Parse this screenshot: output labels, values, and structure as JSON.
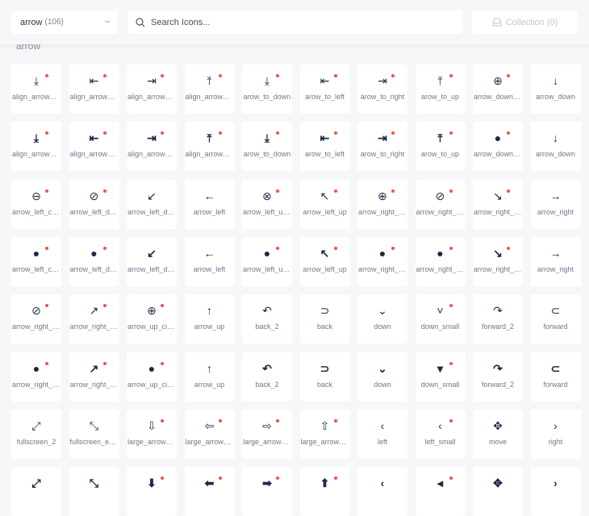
{
  "header": {
    "category_select": {
      "value": "arrow",
      "count": "(106)"
    },
    "search": {
      "placeholder": "Search Icons..."
    },
    "collection_label": "Collection (0)"
  },
  "section_title": "arrow",
  "colors": {
    "accent_dot": "#f5504a",
    "icon": "#1b2a44",
    "background": "#f6f7f9"
  },
  "rows": [
    {
      "filled": false,
      "items": [
        {
          "name": "align_arrow_d...",
          "icon": "⤓",
          "dot": true
        },
        {
          "name": "align_arrow_left",
          "icon": "⇤",
          "dot": true
        },
        {
          "name": "align_arrow_ri...",
          "icon": "⇥",
          "dot": true
        },
        {
          "name": "align_arrow_up",
          "icon": "⤒",
          "dot": true
        },
        {
          "name": "arow_to_down",
          "icon": "⤓",
          "dot": true
        },
        {
          "name": "arow_to_left",
          "icon": "⇤",
          "dot": true
        },
        {
          "name": "arow_to_right",
          "icon": "⇥",
          "dot": true
        },
        {
          "name": "arow_to_up",
          "icon": "⤒",
          "dot": true
        },
        {
          "name": "arrow_down_c...",
          "icon": "⊕",
          "dot": true
        },
        {
          "name": "arrow_down",
          "icon": "↓",
          "dot": false
        }
      ]
    },
    {
      "filled": true,
      "items": [
        {
          "name": "align_arrow_d...",
          "icon": "⤓",
          "dot": true
        },
        {
          "name": "align_arrow_left",
          "icon": "⇤",
          "dot": true
        },
        {
          "name": "align_arrow_ri...",
          "icon": "⇥",
          "dot": true
        },
        {
          "name": "align_arrow_up",
          "icon": "⤒",
          "dot": true
        },
        {
          "name": "arow_to_down",
          "icon": "⤓",
          "dot": true
        },
        {
          "name": "arow_to_left",
          "icon": "⇤",
          "dot": true
        },
        {
          "name": "arow_to_right",
          "icon": "⇥",
          "dot": true
        },
        {
          "name": "arow_to_up",
          "icon": "⤒",
          "dot": true
        },
        {
          "name": "arrow_down_c...",
          "icon": "●",
          "dot": true
        },
        {
          "name": "arrow_down",
          "icon": "↓",
          "dot": false
        }
      ]
    },
    {
      "filled": false,
      "items": [
        {
          "name": "arrow_left_circle",
          "icon": "⊖",
          "dot": true
        },
        {
          "name": "arrow_left_do...",
          "icon": "⊘",
          "dot": true
        },
        {
          "name": "arrow_left_do...",
          "icon": "↙",
          "dot": false
        },
        {
          "name": "arrow_left",
          "icon": "←",
          "dot": false
        },
        {
          "name": "arrow_left_up...",
          "icon": "⊗",
          "dot": true
        },
        {
          "name": "arrow_left_up",
          "icon": "↖",
          "dot": true
        },
        {
          "name": "arrow_right_ci...",
          "icon": "⊕",
          "dot": true
        },
        {
          "name": "arrow_right_d...",
          "icon": "⊘",
          "dot": true
        },
        {
          "name": "arrow_right_d...",
          "icon": "↘",
          "dot": true
        },
        {
          "name": "arrow_right",
          "icon": "→",
          "dot": false
        }
      ]
    },
    {
      "filled": true,
      "items": [
        {
          "name": "arrow_left_circle",
          "icon": "●",
          "dot": true
        },
        {
          "name": "arrow_left_do...",
          "icon": "●",
          "dot": true
        },
        {
          "name": "arrow_left_do...",
          "icon": "↙",
          "dot": false
        },
        {
          "name": "arrow_left",
          "icon": "←",
          "dot": false
        },
        {
          "name": "arrow_left_up...",
          "icon": "●",
          "dot": true
        },
        {
          "name": "arrow_left_up",
          "icon": "↖",
          "dot": true
        },
        {
          "name": "arrow_right_ci...",
          "icon": "●",
          "dot": true
        },
        {
          "name": "arrow_right_d...",
          "icon": "●",
          "dot": true
        },
        {
          "name": "arrow_right_d...",
          "icon": "↘",
          "dot": true
        },
        {
          "name": "arrow_right",
          "icon": "→",
          "dot": false
        }
      ]
    },
    {
      "filled": false,
      "items": [
        {
          "name": "arrow_right_u...",
          "icon": "⊘",
          "dot": true
        },
        {
          "name": "arrow_right_up",
          "icon": "↗",
          "dot": true
        },
        {
          "name": "arrow_up_circle",
          "icon": "⊕",
          "dot": true
        },
        {
          "name": "arrow_up",
          "icon": "↑",
          "dot": false
        },
        {
          "name": "back_2",
          "icon": "↶",
          "dot": false
        },
        {
          "name": "back",
          "icon": "⊃",
          "dot": false
        },
        {
          "name": "down",
          "icon": "⌄",
          "dot": false
        },
        {
          "name": "down_small",
          "icon": "˅",
          "dot": true
        },
        {
          "name": "forward_2",
          "icon": "↷",
          "dot": false
        },
        {
          "name": "forward",
          "icon": "⊂",
          "dot": false
        }
      ]
    },
    {
      "filled": true,
      "items": [
        {
          "name": "arrow_right_u...",
          "icon": "●",
          "dot": true
        },
        {
          "name": "arrow_right_up",
          "icon": "↗",
          "dot": true
        },
        {
          "name": "arrow_up_circle",
          "icon": "●",
          "dot": true
        },
        {
          "name": "arrow_up",
          "icon": "↑",
          "dot": false
        },
        {
          "name": "back_2",
          "icon": "↶",
          "dot": false
        },
        {
          "name": "back",
          "icon": "⊃",
          "dot": false
        },
        {
          "name": "down",
          "icon": "⌄",
          "dot": false
        },
        {
          "name": "down_small",
          "icon": "▾",
          "dot": true
        },
        {
          "name": "forward_2",
          "icon": "↷",
          "dot": false
        },
        {
          "name": "forward",
          "icon": "⊂",
          "dot": false
        }
      ]
    },
    {
      "filled": false,
      "items": [
        {
          "name": "fullscreen_2",
          "icon": "⤢",
          "dot": false
        },
        {
          "name": "fullscreen_exit...",
          "icon": "⤡",
          "dot": false
        },
        {
          "name": "large_arrow_d...",
          "icon": "⇩",
          "dot": true
        },
        {
          "name": "large_arrow_left",
          "icon": "⇦",
          "dot": true
        },
        {
          "name": "large_arrow_ri...",
          "icon": "⇨",
          "dot": true
        },
        {
          "name": "large_arrow_up",
          "icon": "⇧",
          "dot": true
        },
        {
          "name": "left",
          "icon": "‹",
          "dot": false
        },
        {
          "name": "left_small",
          "icon": "‹",
          "dot": true
        },
        {
          "name": "move",
          "icon": "✥",
          "dot": false
        },
        {
          "name": "right",
          "icon": "›",
          "dot": false
        }
      ]
    },
    {
      "filled": true,
      "items": [
        {
          "name": "",
          "icon": "⤢",
          "dot": false
        },
        {
          "name": "",
          "icon": "⤡",
          "dot": false
        },
        {
          "name": "",
          "icon": "⬇",
          "dot": true
        },
        {
          "name": "",
          "icon": "⬅",
          "dot": true
        },
        {
          "name": "",
          "icon": "➡",
          "dot": true
        },
        {
          "name": "",
          "icon": "⬆",
          "dot": true
        },
        {
          "name": "",
          "icon": "‹",
          "dot": false
        },
        {
          "name": "",
          "icon": "◂",
          "dot": true
        },
        {
          "name": "",
          "icon": "✥",
          "dot": false
        },
        {
          "name": "",
          "icon": "›",
          "dot": false
        }
      ]
    }
  ]
}
